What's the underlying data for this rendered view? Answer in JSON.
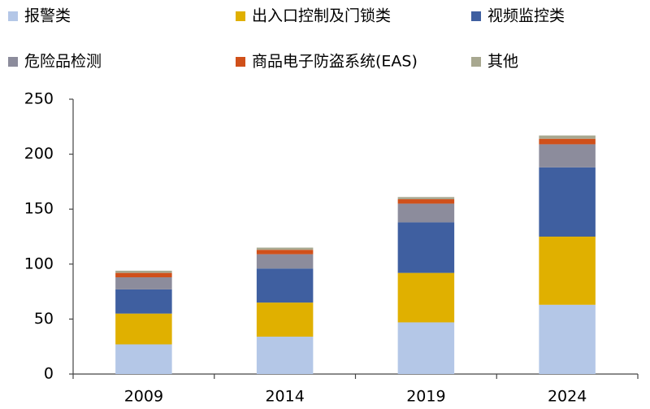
{
  "chart_data": {
    "type": "stacked_bar",
    "categories": [
      "2009",
      "2014",
      "2019",
      "2024"
    ],
    "series": [
      {
        "name": "报警类",
        "color": "#b4c7e7",
        "values": [
          27,
          34,
          47,
          63
        ]
      },
      {
        "name": "出入口控制及门锁类",
        "color": "#e0b000",
        "values": [
          28,
          31,
          45,
          62
        ]
      },
      {
        "name": "视频监控类",
        "color": "#3f5fa0",
        "values": [
          22,
          31,
          46,
          63
        ]
      },
      {
        "name": "危险品检测",
        "color": "#8c8c9c",
        "values": [
          11,
          13,
          17,
          21
        ]
      },
      {
        "name": "商品电子防盗系统(EAS)",
        "color": "#d0501a",
        "values": [
          4,
          4,
          4,
          5
        ]
      },
      {
        "name": "其他",
        "color": "#a8a890",
        "values": [
          2,
          2,
          2,
          3
        ]
      }
    ],
    "ylim": [
      0,
      250
    ],
    "yticks": [
      0,
      50,
      100,
      150,
      200,
      250
    ],
    "grid": false,
    "legend": "top"
  }
}
